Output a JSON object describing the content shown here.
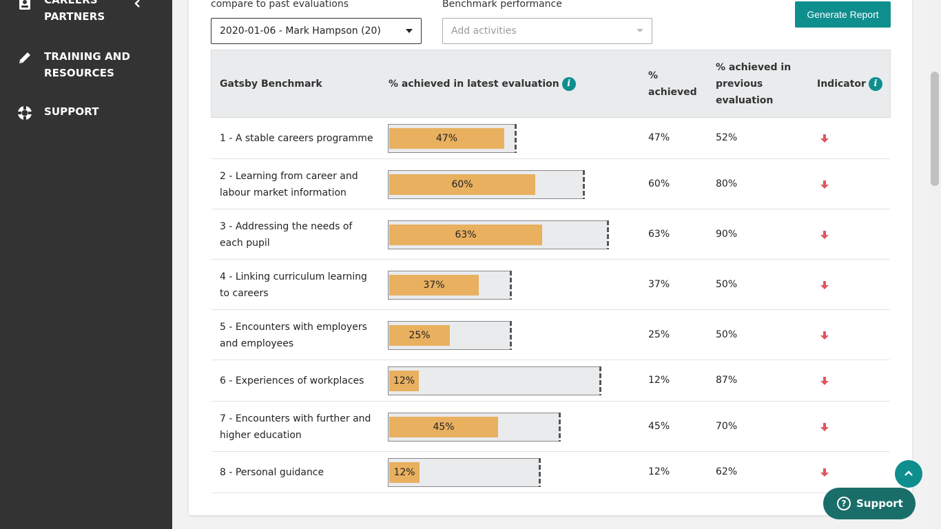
{
  "sidebar": {
    "items": [
      {
        "label_line1": "CAREERS",
        "label_line2": "PARTNERS",
        "icon": "contact-card-icon"
      },
      {
        "label_line1": "TRAINING AND",
        "label_line2": "RESOURCES",
        "icon": "pencil-icon"
      },
      {
        "label_line1": "SUPPORT",
        "label_line2": "",
        "icon": "lifebuoy-icon"
      }
    ]
  },
  "filters": {
    "compare_label": "compare to past evaluations",
    "compare_value": "2020-01-06 - Mark Hampson (20)",
    "benchmark_label": "Benchmark performance",
    "benchmark_placeholder": "Add activities"
  },
  "actions": {
    "generate_report": "Generate Report",
    "support": "Support"
  },
  "table": {
    "headers": {
      "benchmark": "Gatsby Benchmark",
      "latest": "% achieved in latest evaluation",
      "achieved_line1": "%",
      "achieved_line2": "achieved",
      "previous_line1": "% achieved in",
      "previous_line2": "previous",
      "previous_line3": "evaluation",
      "indicator": "Indicator"
    },
    "info_glyph": "i",
    "rows": [
      {
        "name_line1": "1 - A stable careers programme",
        "name_line2": "",
        "bar_label": "47%",
        "achieved": "47%",
        "previous": "52%",
        "fill": 0.47,
        "indicator": "down"
      },
      {
        "name_line1": "2 - Learning from career and",
        "name_line2": "labour market information",
        "bar_label": "60%",
        "achieved": "60%",
        "previous": "80%",
        "fill": 0.6,
        "indicator": "down"
      },
      {
        "name_line1": "3 - Addressing the needs of",
        "name_line2": "each pupil",
        "bar_label": "63%",
        "achieved": "63%",
        "previous": "90%",
        "fill": 0.63,
        "indicator": "down"
      },
      {
        "name_line1": "4 - Linking curriculum learning",
        "name_line2": "to careers",
        "bar_label": "37%",
        "achieved": "37%",
        "previous": "50%",
        "fill": 0.37,
        "indicator": "down"
      },
      {
        "name_line1": "5 - Encounters with employers",
        "name_line2": "and employees",
        "bar_label": "25%",
        "achieved": "25%",
        "previous": "50%",
        "fill": 0.25,
        "indicator": "down"
      },
      {
        "name_line1": "6 - Experiences of workplaces",
        "name_line2": "",
        "bar_label": "12%",
        "achieved": "12%",
        "previous": "87%",
        "fill": 0.12,
        "indicator": "down"
      },
      {
        "name_line1": "7 - Encounters with further and",
        "name_line2": "higher education",
        "bar_label": "45%",
        "achieved": "45%",
        "previous": "70%",
        "fill": 0.45,
        "indicator": "down"
      },
      {
        "name_line1": "8 - Personal guidance",
        "name_line2": "",
        "bar_label": "12%",
        "achieved": "12%",
        "previous": "62%",
        "fill": 0.12,
        "indicator": "down"
      }
    ]
  },
  "colors": {
    "accent": "#0f8e8e",
    "bar_fill": "#e8b05f",
    "down_arrow": "#e0555e",
    "sidebar_bg": "#333333"
  }
}
